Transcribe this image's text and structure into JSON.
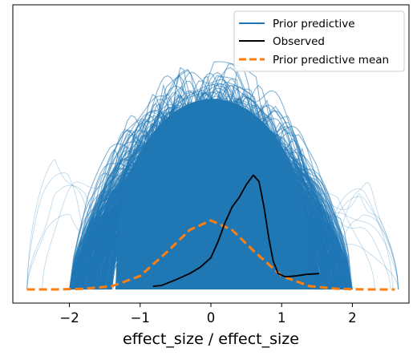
{
  "chart_data": {
    "type": "line",
    "title": "",
    "xlabel": "effect_size / effect_size",
    "ylabel": "",
    "xlim": [
      -2.8,
      2.8
    ],
    "x_ticks": [
      -2,
      -1,
      0,
      1,
      2
    ],
    "x_tick_labels": [
      "−2",
      "−1",
      "0",
      "1",
      "2"
    ],
    "y_ticks_shown": false,
    "grid": false,
    "legend": {
      "placement": "top-right",
      "entries": [
        {
          "label": "Prior predictive",
          "color": "#1f77b4",
          "style": "solid"
        },
        {
          "label": "Observed",
          "color": "#000000",
          "style": "solid"
        },
        {
          "label": "Prior predictive mean",
          "color": "#ff7f0e",
          "style": "dashed"
        }
      ]
    },
    "series": [
      {
        "name": "Observed",
        "color": "#000000",
        "x": [
          -0.82,
          -0.7,
          -0.5,
          -0.3,
          -0.15,
          0.0,
          0.1,
          0.2,
          0.3,
          0.4,
          0.5,
          0.6,
          0.68,
          0.75,
          0.82,
          0.88,
          0.95,
          1.05,
          1.2,
          1.35,
          1.53
        ],
        "y": [
          0.02,
          0.025,
          0.06,
          0.1,
          0.14,
          0.2,
          0.3,
          0.42,
          0.52,
          0.58,
          0.66,
          0.72,
          0.68,
          0.52,
          0.32,
          0.18,
          0.1,
          0.08,
          0.085,
          0.095,
          0.1
        ]
      },
      {
        "name": "Prior predictive mean",
        "color": "#ff7f0e",
        "x": [
          -2.6,
          -2.2,
          -1.8,
          -1.4,
          -1.0,
          -0.6,
          -0.3,
          0.0,
          0.3,
          0.6,
          1.0,
          1.4,
          1.8,
          2.2,
          2.6
        ],
        "y": [
          0.0,
          0.0,
          0.004,
          0.02,
          0.085,
          0.245,
          0.375,
          0.435,
          0.375,
          0.245,
          0.085,
          0.02,
          0.004,
          0.0,
          0.0
        ]
      },
      {
        "name": "Prior predictive",
        "color": "#1f77b4",
        "x_range": [
          -2.6,
          2.65
        ],
        "y_range": [
          0.0,
          1.45
        ],
        "bulk_x_range": [
          -1.5,
          1.5
        ],
        "bulk_y_top": 1.2
      }
    ]
  }
}
